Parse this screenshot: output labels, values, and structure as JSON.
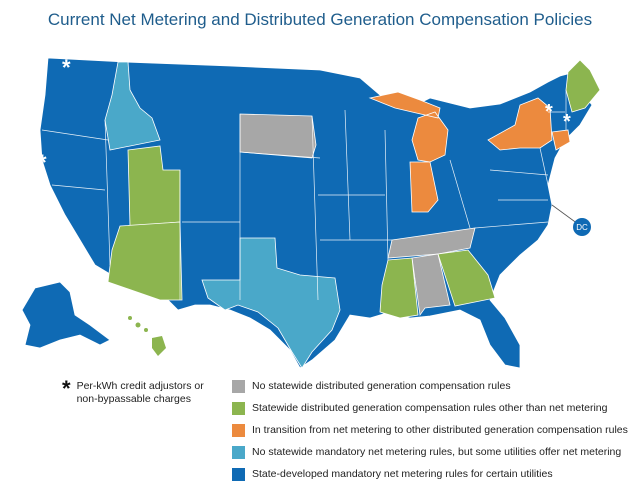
{
  "title": "Current Net Metering and Distributed Generation Compensation Policies",
  "colors": {
    "gray": "#a7a7a7",
    "green": "#8cb54f",
    "orange": "#ec8a3e",
    "teal": "#4aa8c9",
    "blue": "#0f6ab4"
  },
  "legend": [
    {
      "color": "#a7a7a7",
      "label": "No statewide distributed generation compensation rules"
    },
    {
      "color": "#8cb54f",
      "label": "Statewide distributed generation compensation rules other than net metering"
    },
    {
      "color": "#ec8a3e",
      "label": "In transition from net metering to other distributed generation compensation rules"
    },
    {
      "color": "#4aa8c9",
      "label": "No statewide mandatory net metering rules, but some utilities offer net metering"
    },
    {
      "color": "#0f6ab4",
      "label": "State-developed mandatory net metering rules for certain utilities"
    }
  ],
  "footnote": {
    "symbol": "*",
    "text": "Per-kWh credit adjustors or non-bypassable charges"
  },
  "map_labels": {
    "dc": "DC",
    "asterisk": "*"
  }
}
